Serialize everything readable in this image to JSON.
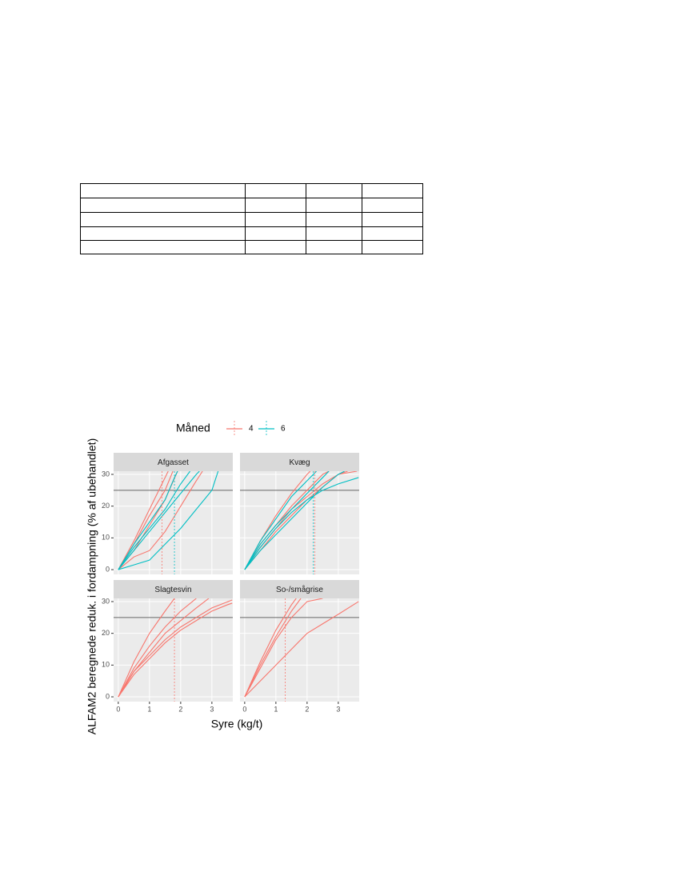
{
  "chart_data": {
    "type": "line",
    "legend_title": "Måned",
    "x_label": "Syre (kg/t)",
    "y_label": "ALFAM2 beregnede reduk. i fordampning (% af ubehandlet)",
    "xlim": [
      -0.15,
      3.67
    ],
    "ylim": [
      -1.5,
      31
    ],
    "xticks": [
      0,
      1,
      2,
      3
    ],
    "yticks": [
      0,
      10,
      20,
      30
    ],
    "reference_y": 25,
    "grid": true,
    "groups": [
      {
        "name": "4",
        "color": "#f8766d"
      },
      {
        "name": "6",
        "color": "#00bfc4"
      }
    ],
    "panels": [
      {
        "title": "Afgasset",
        "thresholds": [
          {
            "group": 0,
            "x": 1.4
          },
          {
            "group": 1,
            "x": 1.8
          }
        ],
        "curves": [
          {
            "group": 0,
            "x": [
              0,
              0.5,
              1,
              1.5,
              1.75
            ],
            "values": [
              0,
              8,
              17,
              25,
              31
            ]
          },
          {
            "group": 0,
            "x": [
              0,
              0.5,
              1,
              1.4,
              1.6
            ],
            "values": [
              0,
              9,
              19,
              27,
              31
            ]
          },
          {
            "group": 0,
            "x": [
              0,
              0.5,
              1,
              1.5,
              2,
              2.5,
              2.7
            ],
            "values": [
              0,
              4,
              6,
              12,
              20,
              28,
              31
            ]
          },
          {
            "group": 0,
            "x": [
              0,
              0.5,
              1,
              1.5,
              1.9
            ],
            "values": [
              0,
              6,
              14,
              22,
              31
            ]
          },
          {
            "group": 1,
            "x": [
              0,
              0.5,
              1,
              1.5,
              1.8,
              1.9
            ],
            "values": [
              0,
              8,
              15,
              22,
              29,
              31
            ]
          },
          {
            "group": 1,
            "x": [
              0,
              0.5,
              1,
              1.5,
              2,
              2.5,
              2.6
            ],
            "values": [
              0,
              6,
              12,
              18,
              24,
              30,
              31
            ]
          },
          {
            "group": 1,
            "x": [
              0,
              0.5,
              1,
              1.5,
              2,
              2.5,
              3,
              3.2
            ],
            "values": [
              0,
              1.5,
              3,
              8,
              13,
              19,
              25,
              31
            ]
          },
          {
            "group": 1,
            "x": [
              0,
              0.5,
              1,
              1.5,
              2,
              2.3
            ],
            "values": [
              0,
              7,
              13,
              19,
              27,
              31
            ]
          }
        ]
      },
      {
        "title": "Kvæg",
        "thresholds": [
          {
            "group": 0,
            "x": 2.25
          },
          {
            "group": 1,
            "x": 2.2
          }
        ],
        "curves": [
          {
            "group": 0,
            "x": [
              0,
              0.5,
              1,
              1.5,
              2,
              2.5,
              2.7
            ],
            "values": [
              0,
              8,
              14,
              20,
              25,
              30,
              31
            ]
          },
          {
            "group": 0,
            "x": [
              0,
              0.5,
              1,
              1.5,
              2,
              2.5,
              3,
              3.3
            ],
            "values": [
              0,
              6,
              12,
              17,
              22,
              26,
              30,
              31
            ]
          },
          {
            "group": 0,
            "x": [
              0,
              0.5,
              1,
              1.5,
              2,
              2.1
            ],
            "values": [
              0,
              9,
              17,
              24,
              30,
              31
            ]
          },
          {
            "group": 0,
            "x": [
              0,
              0.5,
              1,
              1.5,
              2,
              2.5,
              3,
              3.6
            ],
            "values": [
              0,
              7,
              13,
              19,
              23,
              27,
              30,
              31
            ]
          },
          {
            "group": 1,
            "x": [
              0,
              0.5,
              1,
              1.5,
              2,
              2.5,
              3,
              3.65
            ],
            "values": [
              0,
              7,
              13,
              18,
              22,
              25,
              27,
              29
            ]
          },
          {
            "group": 1,
            "x": [
              0,
              0.5,
              1,
              1.5,
              2,
              2.3
            ],
            "values": [
              0,
              9,
              16,
              23,
              28,
              31
            ]
          },
          {
            "group": 1,
            "x": [
              0,
              0.5,
              1,
              1.5,
              2,
              2.5,
              2.7
            ],
            "values": [
              0,
              8,
              14,
              19,
              24,
              29,
              31
            ]
          },
          {
            "group": 1,
            "x": [
              0,
              0.5,
              1,
              1.5,
              2,
              2.5,
              3,
              3.2
            ],
            "values": [
              0,
              6,
              11,
              16,
              21,
              26,
              30,
              31
            ]
          }
        ]
      },
      {
        "title": "Slagtesvin",
        "thresholds": [
          {
            "group": 0,
            "x": 1.8
          }
        ],
        "curves": [
          {
            "group": 0,
            "x": [
              0,
              0.5,
              1,
              1.5,
              1.8
            ],
            "values": [
              0,
              11,
              20,
              27,
              31
            ]
          },
          {
            "group": 0,
            "x": [
              0,
              0.5,
              1,
              1.5,
              2,
              2.5
            ],
            "values": [
              0,
              9,
              16,
              22,
              27,
              31
            ]
          },
          {
            "group": 0,
            "x": [
              0,
              0.5,
              1,
              1.5,
              2,
              2.5,
              2.9
            ],
            "values": [
              0,
              8,
              14,
              20,
              24,
              28,
              31
            ]
          },
          {
            "group": 0,
            "x": [
              0,
              0.5,
              1,
              1.5,
              2,
              2.5,
              3,
              3.65
            ],
            "values": [
              0,
              8,
              13,
              18,
              22,
              25,
              28,
              30.5
            ]
          },
          {
            "group": 0,
            "x": [
              0,
              0.5,
              1,
              1.5,
              2,
              2.5,
              3,
              3.5,
              3.65
            ],
            "values": [
              0,
              7,
              12,
              17,
              21,
              24,
              27,
              29,
              29.5
            ]
          }
        ]
      },
      {
        "title": "So-/smågrise",
        "thresholds": [
          {
            "group": 0,
            "x": 1.3
          }
        ],
        "curves": [
          {
            "group": 0,
            "x": [
              0,
              0.5,
              1,
              1.5,
              1.8
            ],
            "values": [
              0,
              10,
              19,
              27,
              31
            ]
          },
          {
            "group": 0,
            "x": [
              0,
              0.5,
              1,
              1.5,
              1.65
            ],
            "values": [
              0,
              11,
              21,
              29,
              31
            ]
          },
          {
            "group": 0,
            "x": [
              0,
              0.5,
              1,
              1.5,
              2,
              2.5
            ],
            "values": [
              0,
              9,
              18,
              25,
              30,
              31
            ]
          },
          {
            "group": 0,
            "x": [
              0,
              0.5,
              1,
              1.5,
              2,
              2.5,
              3,
              3.65
            ],
            "values": [
              0,
              5,
              10,
              15,
              20,
              23,
              26,
              30
            ]
          }
        ]
      }
    ]
  }
}
